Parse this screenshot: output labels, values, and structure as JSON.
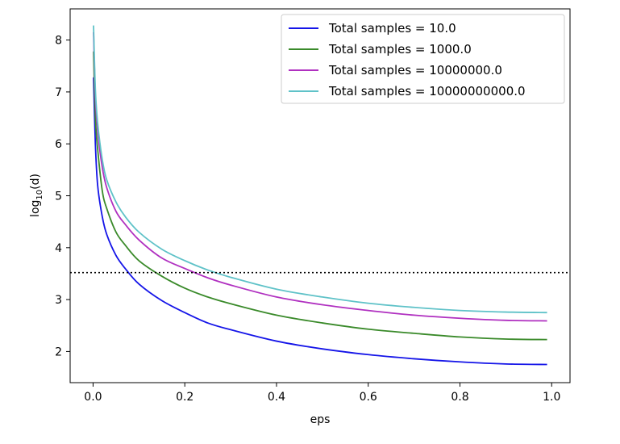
{
  "chart_data": {
    "type": "line",
    "title": "",
    "xlabel": "eps",
    "ylabel": "log10(d)",
    "ylabel_parts": {
      "prefix": "log",
      "subscript": "10",
      "suffix": "(d)"
    },
    "xlim": [
      -0.05,
      1.04
    ],
    "ylim": [
      1.4,
      8.6
    ],
    "xticks": [
      0.0,
      0.2,
      0.4,
      0.6,
      0.8,
      1.0
    ],
    "xtick_labels": [
      "0.0",
      "0.2",
      "0.4",
      "0.6",
      "0.8",
      "1.0"
    ],
    "yticks": [
      2,
      3,
      4,
      5,
      6,
      7,
      8
    ],
    "ytick_labels": [
      "2",
      "3",
      "4",
      "5",
      "6",
      "7",
      "8"
    ],
    "grid": false,
    "legend_position": "top-right",
    "hline": {
      "y": 3.52,
      "style": "dotted",
      "color": "#000000"
    },
    "x": [
      0.001,
      0.005,
      0.01,
      0.02,
      0.03,
      0.05,
      0.07,
      0.1,
      0.15,
      0.2,
      0.25,
      0.3,
      0.4,
      0.5,
      0.6,
      0.7,
      0.8,
      0.9,
      0.99
    ],
    "series": [
      {
        "name": "Total samples = 10.0",
        "color": "#1515e8",
        "values": [
          7.28,
          6.0,
          5.2,
          4.6,
          4.25,
          3.85,
          3.6,
          3.3,
          2.98,
          2.75,
          2.55,
          2.42,
          2.2,
          2.05,
          1.94,
          1.86,
          1.8,
          1.76,
          1.75
        ]
      },
      {
        "name": "Total samples = 1000.0",
        "color": "#3a8a2a",
        "values": [
          7.78,
          6.5,
          5.9,
          5.1,
          4.75,
          4.3,
          4.05,
          3.75,
          3.45,
          3.22,
          3.05,
          2.92,
          2.7,
          2.55,
          2.43,
          2.35,
          2.28,
          2.24,
          2.23
        ]
      },
      {
        "name": "Total samples = 10000000.0",
        "color": "#b030c0",
        "values": [
          8.15,
          6.9,
          6.25,
          5.55,
          5.15,
          4.7,
          4.45,
          4.15,
          3.8,
          3.6,
          3.42,
          3.28,
          3.05,
          2.9,
          2.79,
          2.7,
          2.64,
          2.6,
          2.59
        ]
      },
      {
        "name": "Total samples = 10000000000.0",
        "color": "#5fc2c8",
        "values": [
          8.28,
          7.05,
          6.4,
          5.7,
          5.3,
          4.88,
          4.6,
          4.3,
          3.97,
          3.75,
          3.57,
          3.43,
          3.2,
          3.05,
          2.93,
          2.85,
          2.79,
          2.76,
          2.75
        ]
      }
    ]
  }
}
